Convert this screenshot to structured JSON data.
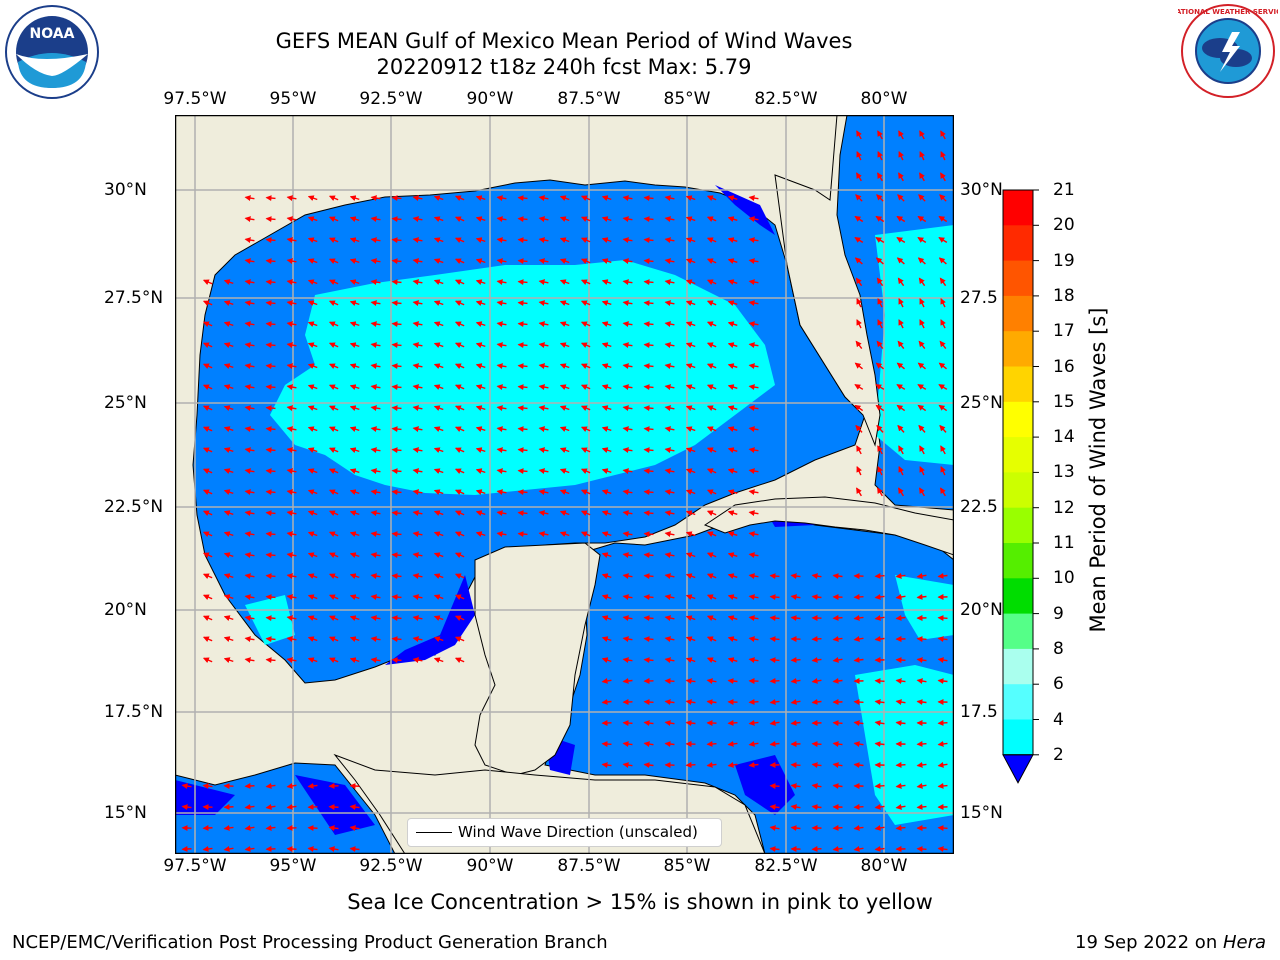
{
  "title": {
    "line1": "GEFS MEAN Gulf of Mexico Mean Period of Wind Waves",
    "line2": "20220912 t18z 240h fcst   Max: 5.79"
  },
  "lon_ticks": [
    "97.5°W",
    "95°W",
    "92.5°W",
    "90°W",
    "87.5°W",
    "85°W",
    "82.5°W",
    "80°W"
  ],
  "lat_ticks_left": [
    "30°N",
    "27.5°N",
    "25°N",
    "22.5°N",
    "20°N",
    "17.5°N",
    "15°N"
  ],
  "lat_ticks_right": [
    "30°N",
    "27.5",
    "25°N",
    "22.5",
    "20°N",
    "17.5",
    "15°N"
  ],
  "colorbar": {
    "label": "Mean Period of Wind Waves [s]",
    "ticks": [
      "21",
      "20",
      "19",
      "18",
      "17",
      "16",
      "15",
      "14",
      "13",
      "12",
      "11",
      "10",
      "9",
      "8",
      "6",
      "4",
      "2"
    ],
    "colors": [
      "#ff0000",
      "#ff2a00",
      "#ff5500",
      "#ff8000",
      "#ffaa00",
      "#ffd400",
      "#ffff00",
      "#e6ff00",
      "#ccff00",
      "#99ff00",
      "#55ee00",
      "#00dd00",
      "#55ff88",
      "#aaffee",
      "#55ffff",
      "#00ffff",
      "#0080ff"
    ],
    "under_color": "#0000ff"
  },
  "legend": {
    "label": "Wind Wave Direction (unscaled)"
  },
  "logos": {
    "left": "NOAA",
    "right": "NATIONAL WEATHER SERVICE"
  },
  "note": "Sea Ice Concentration > 15% is shown in pink to yellow",
  "footer": {
    "left": "NCEP/EMC/Verification Post Processing Product Generation Branch",
    "right_date": "19 Sep 2022 on ",
    "right_host": "Hera"
  },
  "colors": {
    "land": "#efeddc",
    "ocean_low": "#0080ff",
    "ocean_mid": "#00ffff",
    "ocean_min": "#0000ff",
    "arrow": "#ff0000",
    "grid": "#b0b0b0"
  }
}
